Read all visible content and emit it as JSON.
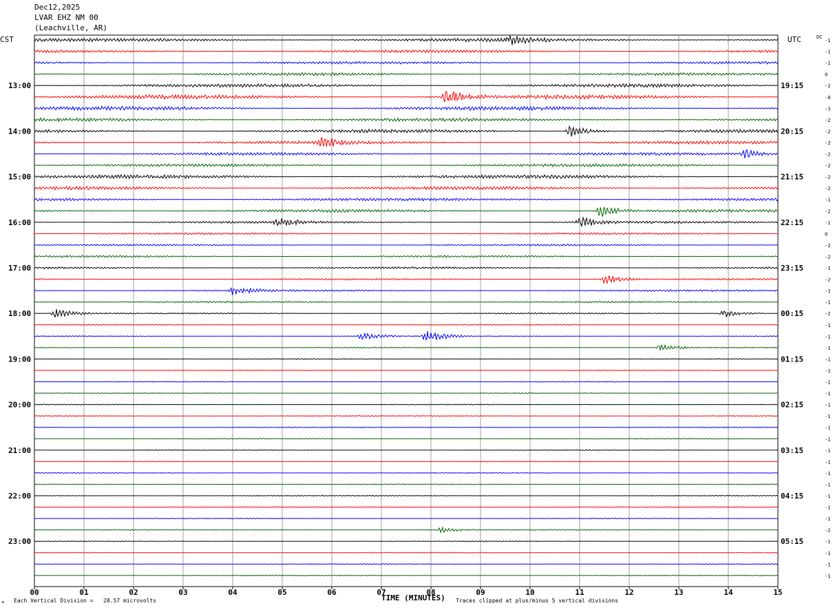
{
  "header": {
    "date": "Dec12,2025",
    "station": "LVAR EHZ NM 00",
    "location": "(Leachville, AR)"
  },
  "left_zone": "CST",
  "right_zone": "UTC",
  "dc_label": "DC",
  "footer": {
    "scale_note": "Each Vertical Division =   28.57 microvolts",
    "clip_note": "Traces clipped at plus/minus 5 vertical divisions",
    "xlabel": "TIME (MINUTES)"
  },
  "chart_data": {
    "type": "helicorder",
    "xlabel": "TIME (MINUTES)",
    "xlim": [
      0,
      15
    ],
    "x_ticks": [
      "00",
      "01",
      "02",
      "03",
      "04",
      "05",
      "06",
      "07",
      "08",
      "09",
      "10",
      "11",
      "12",
      "13",
      "14",
      "15"
    ],
    "trace_colors": [
      "#000000",
      "#ff0000",
      "#0000ff",
      "#006400"
    ],
    "left_hour_labels": [
      "13:00",
      "14:00",
      "15:00",
      "16:00",
      "17:00",
      "18:00",
      "19:00",
      "20:00",
      "21:00",
      "22:00",
      "23:00"
    ],
    "right_hour_labels": [
      "19:15",
      "20:15",
      "21:15",
      "22:15",
      "23:15",
      "00:15",
      "01:15",
      "02:15",
      "03:15",
      "04:15",
      "05:15"
    ],
    "dc_offsets": [
      "-1",
      "-1",
      "-1",
      "0",
      "-2",
      "-0",
      "-3",
      "-2",
      "-2",
      "-2",
      "-2",
      "-2",
      "-2",
      "-2",
      "-1",
      "-2",
      "-1",
      "0",
      "-2",
      "-2",
      "-1",
      "-2",
      "-1",
      "-1",
      "-2",
      "-1",
      "-1",
      "-1",
      "-1",
      "-1",
      "-1",
      "-1",
      "-1",
      "-1",
      "-1",
      "-1",
      "-1",
      "-1",
      "-1",
      "-1",
      "-1",
      "-1",
      "-1",
      "-2",
      "-1",
      "-1",
      "-1",
      "-1"
    ],
    "trace_activity": [
      2.4,
      1.9,
      1.7,
      1.9,
      2.3,
      2.8,
      2.7,
      2.3,
      2.4,
      2.1,
      1.9,
      2.0,
      2.6,
      2.3,
      2.0,
      2.0,
      1.6,
      1.3,
      1.2,
      1.4,
      1.3,
      1.1,
      1.2,
      1.1,
      0.9,
      0.7,
      0.7,
      0.7,
      0.6,
      0.6,
      0.6,
      0.6,
      0.6,
      0.6,
      0.6,
      0.6,
      0.6,
      0.6,
      0.6,
      0.6,
      0.6,
      0.6,
      0.6,
      0.6,
      0.6,
      0.6,
      0.6,
      0.6
    ],
    "events": [
      {
        "trace": 0,
        "minute": 9.6,
        "amp": 1.5
      },
      {
        "trace": 5,
        "minute": 8.3,
        "amp": 2.6
      },
      {
        "trace": 8,
        "minute": 10.8,
        "amp": 2.0
      },
      {
        "trace": 9,
        "minute": 5.8,
        "amp": 1.6
      },
      {
        "trace": 10,
        "minute": 14.3,
        "amp": 1.5
      },
      {
        "trace": 15,
        "minute": 11.4,
        "amp": 2.0
      },
      {
        "trace": 16,
        "minute": 11.0,
        "amp": 1.8
      },
      {
        "trace": 16,
        "minute": 4.9,
        "amp": 1.2
      },
      {
        "trace": 21,
        "minute": 11.5,
        "amp": 1.6
      },
      {
        "trace": 22,
        "minute": 4.0,
        "amp": 1.5
      },
      {
        "trace": 24,
        "minute": 0.4,
        "amp": 1.5
      },
      {
        "trace": 24,
        "minute": 13.9,
        "amp": 1.3
      },
      {
        "trace": 26,
        "minute": 7.9,
        "amp": 2.0
      },
      {
        "trace": 26,
        "minute": 6.6,
        "amp": 1.2
      },
      {
        "trace": 27,
        "minute": 12.6,
        "amp": 1.2
      },
      {
        "trace": 43,
        "minute": 8.2,
        "amp": 1.0
      }
    ]
  }
}
